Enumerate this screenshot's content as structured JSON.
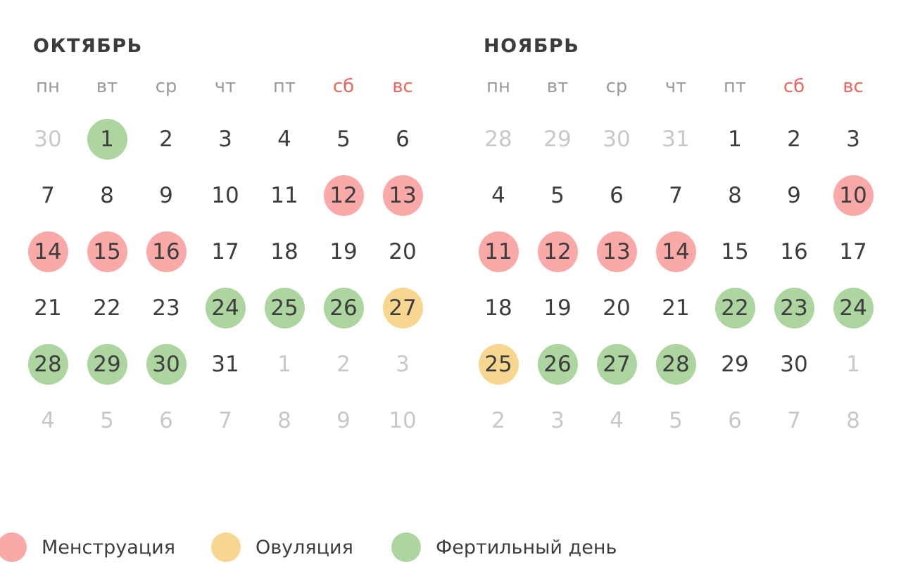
{
  "colors": {
    "menstruation": "#f9a9a7",
    "ovulation": "#f7d78f",
    "fertile": "#add5a0",
    "weekend_header": "#ed655f",
    "weekday_header": "#9a9a9a",
    "title_text": "#3b3b3b",
    "day_text": "#3d3d3d",
    "muted_day_text": "#c8c8c8",
    "background": "#ffffff"
  },
  "months": [
    {
      "title": "ОКТЯБРЬ",
      "weekdays": [
        {
          "label": "пн",
          "weekend": false
        },
        {
          "label": "вт",
          "weekend": false
        },
        {
          "label": "ср",
          "weekend": false
        },
        {
          "label": "чт",
          "weekend": false
        },
        {
          "label": "пт",
          "weekend": false
        },
        {
          "label": "сб",
          "weekend": true
        },
        {
          "label": "вс",
          "weekend": true
        }
      ],
      "weeks": [
        [
          {
            "day": 30,
            "other": true
          },
          {
            "day": 1,
            "marker": "fertile"
          },
          {
            "day": 2
          },
          {
            "day": 3
          },
          {
            "day": 4
          },
          {
            "day": 5
          },
          {
            "day": 6
          }
        ],
        [
          {
            "day": 7
          },
          {
            "day": 8
          },
          {
            "day": 9
          },
          {
            "day": 10
          },
          {
            "day": 11
          },
          {
            "day": 12,
            "marker": "menstruation"
          },
          {
            "day": 13,
            "marker": "menstruation"
          }
        ],
        [
          {
            "day": 14,
            "marker": "menstruation"
          },
          {
            "day": 15,
            "marker": "menstruation"
          },
          {
            "day": 16,
            "marker": "menstruation"
          },
          {
            "day": 17
          },
          {
            "day": 18
          },
          {
            "day": 19
          },
          {
            "day": 20
          }
        ],
        [
          {
            "day": 21
          },
          {
            "day": 22
          },
          {
            "day": 23
          },
          {
            "day": 24,
            "marker": "fertile"
          },
          {
            "day": 25,
            "marker": "fertile"
          },
          {
            "day": 26,
            "marker": "fertile"
          },
          {
            "day": 27,
            "marker": "ovulation"
          }
        ],
        [
          {
            "day": 28,
            "marker": "fertile"
          },
          {
            "day": 29,
            "marker": "fertile"
          },
          {
            "day": 30,
            "marker": "fertile"
          },
          {
            "day": 31
          },
          {
            "day": 1,
            "other": true
          },
          {
            "day": 2,
            "other": true
          },
          {
            "day": 3,
            "other": true
          }
        ],
        [
          {
            "day": 4,
            "other": true
          },
          {
            "day": 5,
            "other": true
          },
          {
            "day": 6,
            "other": true
          },
          {
            "day": 7,
            "other": true
          },
          {
            "day": 8,
            "other": true
          },
          {
            "day": 9,
            "other": true
          },
          {
            "day": 10,
            "other": true
          }
        ]
      ]
    },
    {
      "title": "НОЯБРЬ",
      "weekdays": [
        {
          "label": "пн",
          "weekend": false
        },
        {
          "label": "вт",
          "weekend": false
        },
        {
          "label": "ср",
          "weekend": false
        },
        {
          "label": "чт",
          "weekend": false
        },
        {
          "label": "пт",
          "weekend": false
        },
        {
          "label": "сб",
          "weekend": true
        },
        {
          "label": "вс",
          "weekend": true
        }
      ],
      "weeks": [
        [
          {
            "day": 28,
            "other": true
          },
          {
            "day": 29,
            "other": true
          },
          {
            "day": 30,
            "other": true
          },
          {
            "day": 31,
            "other": true
          },
          {
            "day": 1
          },
          {
            "day": 2
          },
          {
            "day": 3
          }
        ],
        [
          {
            "day": 4
          },
          {
            "day": 5
          },
          {
            "day": 6
          },
          {
            "day": 7
          },
          {
            "day": 8
          },
          {
            "day": 9
          },
          {
            "day": 10,
            "marker": "menstruation"
          }
        ],
        [
          {
            "day": 11,
            "marker": "menstruation"
          },
          {
            "day": 12,
            "marker": "menstruation"
          },
          {
            "day": 13,
            "marker": "menstruation"
          },
          {
            "day": 14,
            "marker": "menstruation"
          },
          {
            "day": 15
          },
          {
            "day": 16
          },
          {
            "day": 17
          }
        ],
        [
          {
            "day": 18
          },
          {
            "day": 19
          },
          {
            "day": 20
          },
          {
            "day": 21
          },
          {
            "day": 22,
            "marker": "fertile"
          },
          {
            "day": 23,
            "marker": "fertile"
          },
          {
            "day": 24,
            "marker": "fertile"
          }
        ],
        [
          {
            "day": 25,
            "marker": "ovulation"
          },
          {
            "day": 26,
            "marker": "fertile"
          },
          {
            "day": 27,
            "marker": "fertile"
          },
          {
            "day": 28,
            "marker": "fertile"
          },
          {
            "day": 29
          },
          {
            "day": 30
          },
          {
            "day": 1,
            "other": true
          }
        ],
        [
          {
            "day": 2,
            "other": true
          },
          {
            "day": 3,
            "other": true
          },
          {
            "day": 4,
            "other": true
          },
          {
            "day": 5,
            "other": true
          },
          {
            "day": 6,
            "other": true
          },
          {
            "day": 7,
            "other": true
          },
          {
            "day": 8,
            "other": true
          }
        ]
      ]
    }
  ],
  "legend": [
    {
      "label": "Менструация",
      "marker": "menstruation"
    },
    {
      "label": "Овуляция",
      "marker": "ovulation"
    },
    {
      "label": "Фертильный день",
      "marker": "fertile"
    }
  ]
}
